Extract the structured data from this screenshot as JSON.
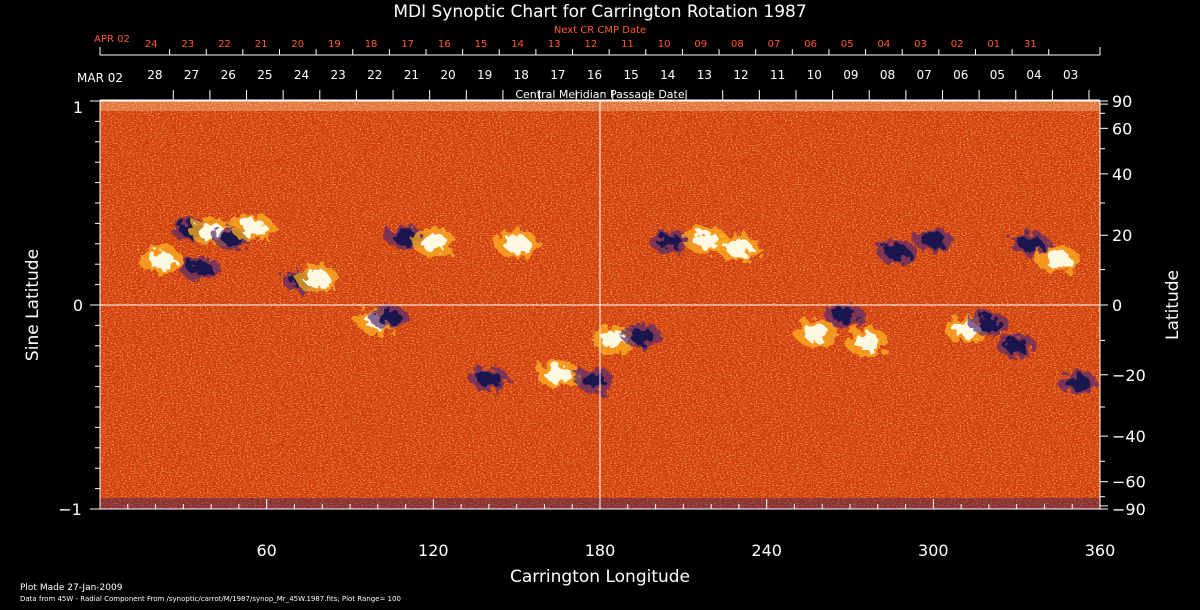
{
  "chart_data": {
    "type": "heatmap",
    "title": "MDI Synoptic Chart for Carrington Rotation 1987",
    "xlabel": "Carrington Longitude",
    "ylabel_left": "Sine Latitude",
    "ylabel_right": "Latitude",
    "xlim": [
      0,
      360
    ],
    "ylim": [
      -1,
      1
    ],
    "x_ticks": [
      "60",
      "120",
      "180",
      "240",
      "300",
      "360"
    ],
    "y_ticks_left": [
      "1",
      "0",
      "−1"
    ],
    "y_ticks_right": [
      "90",
      "60",
      "40",
      "20",
      "0",
      "−20",
      "−40",
      "−60",
      "−90"
    ],
    "cmp_axis": {
      "label": "Central Meridian Passage Date",
      "start_label": "MAR 02",
      "dates": [
        "28",
        "27",
        "26",
        "25",
        "24",
        "23",
        "22",
        "21",
        "20",
        "19",
        "18",
        "17",
        "16",
        "15",
        "14",
        "13",
        "12",
        "11",
        "10",
        "09",
        "08",
        "07",
        "06",
        "05",
        "04",
        "03"
      ]
    },
    "next_cr_axis": {
      "label": "Next CR CMP Date",
      "start_label": "APR 02",
      "dates": [
        "24",
        "23",
        "22",
        "21",
        "20",
        "19",
        "18",
        "17",
        "16",
        "15",
        "14",
        "13",
        "12",
        "11",
        "10",
        "09",
        "08",
        "07",
        "06",
        "05",
        "04",
        "03",
        "02",
        "01",
        "31"
      ]
    },
    "colors": {
      "negative": "#1a1450",
      "background": "#d23a08",
      "mid": "#ff6a10",
      "positive": "#fff8e0",
      "text": "#ffffff",
      "next_axis": "#ff5a28"
    },
    "active_regions": [
      {
        "lon": 22,
        "sinlat": 0.22,
        "polarity": "positive"
      },
      {
        "lon": 33,
        "sinlat": 0.37,
        "polarity": "negative"
      },
      {
        "lon": 36,
        "sinlat": 0.18,
        "polarity": "negative"
      },
      {
        "lon": 40,
        "sinlat": 0.36,
        "polarity": "positive"
      },
      {
        "lon": 48,
        "sinlat": 0.33,
        "polarity": "negative"
      },
      {
        "lon": 55,
        "sinlat": 0.38,
        "polarity": "positive"
      },
      {
        "lon": 73,
        "sinlat": 0.12,
        "polarity": "negative"
      },
      {
        "lon": 78,
        "sinlat": 0.13,
        "polarity": "positive"
      },
      {
        "lon": 100,
        "sinlat": -0.08,
        "polarity": "positive"
      },
      {
        "lon": 104,
        "sinlat": -0.06,
        "polarity": "negative"
      },
      {
        "lon": 110,
        "sinlat": 0.33,
        "polarity": "negative"
      },
      {
        "lon": 120,
        "sinlat": 0.31,
        "polarity": "positive"
      },
      {
        "lon": 150,
        "sinlat": 0.3,
        "polarity": "positive"
      },
      {
        "lon": 140,
        "sinlat": -0.36,
        "polarity": "negative"
      },
      {
        "lon": 165,
        "sinlat": -0.34,
        "polarity": "positive"
      },
      {
        "lon": 178,
        "sinlat": -0.37,
        "polarity": "negative"
      },
      {
        "lon": 185,
        "sinlat": -0.17,
        "polarity": "positive"
      },
      {
        "lon": 195,
        "sinlat": -0.15,
        "polarity": "negative"
      },
      {
        "lon": 205,
        "sinlat": 0.31,
        "polarity": "negative"
      },
      {
        "lon": 218,
        "sinlat": 0.32,
        "polarity": "positive"
      },
      {
        "lon": 230,
        "sinlat": 0.28,
        "polarity": "positive"
      },
      {
        "lon": 258,
        "sinlat": -0.14,
        "polarity": "positive"
      },
      {
        "lon": 268,
        "sinlat": -0.05,
        "polarity": "negative"
      },
      {
        "lon": 276,
        "sinlat": -0.18,
        "polarity": "positive"
      },
      {
        "lon": 287,
        "sinlat": 0.26,
        "polarity": "negative"
      },
      {
        "lon": 300,
        "sinlat": 0.32,
        "polarity": "negative"
      },
      {
        "lon": 312,
        "sinlat": -0.12,
        "polarity": "positive"
      },
      {
        "lon": 320,
        "sinlat": -0.09,
        "polarity": "negative"
      },
      {
        "lon": 330,
        "sinlat": -0.2,
        "polarity": "negative"
      },
      {
        "lon": 335,
        "sinlat": 0.3,
        "polarity": "negative"
      },
      {
        "lon": 345,
        "sinlat": 0.22,
        "polarity": "positive"
      },
      {
        "lon": 352,
        "sinlat": -0.38,
        "polarity": "negative"
      }
    ]
  },
  "footer": {
    "plot_made": "Plot Made 27-Jan-2009",
    "data_source": "Data from 45W - Radial Component From /synoptic/carrot/M/1987/synop_Mr_45W.1987.fits; Plot Range= 100"
  }
}
